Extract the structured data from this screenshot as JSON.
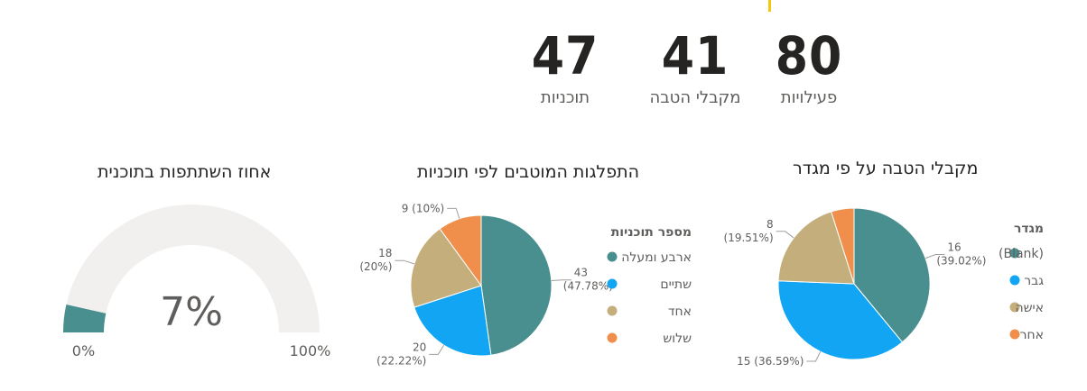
{
  "kpis": [
    {
      "value": "80",
      "label": "פעילויות"
    },
    {
      "value": "41",
      "label": "מקבלי הטבה"
    },
    {
      "value": "47",
      "label": "תוכניות"
    }
  ],
  "chart_data": [
    {
      "type": "gauge",
      "title": "אחוז השתתפות בתוכנית",
      "value": 7,
      "display_value": "7%",
      "min": 0,
      "max": 100,
      "min_label": "0%",
      "max_label": "100%",
      "colors": {
        "fill": "#4a8f8f",
        "track": "#f1f0ef"
      }
    },
    {
      "type": "pie",
      "title": "התפלגות המוטבים לפי תוכניות",
      "legend_title": "מספר תוכניות",
      "legend_position": "right",
      "slices": [
        {
          "name": "ארבע ומעלה",
          "value": 43,
          "count_label": "43",
          "pct_label": "(47.78%)",
          "color": "#4a8f8f"
        },
        {
          "name": "שתיים",
          "value": 20,
          "count_label": "20",
          "pct_label": "(22.22%)",
          "color": "#12a5f4"
        },
        {
          "name": "אחד",
          "value": 18,
          "count_label": "18",
          "pct_label": "(20%)",
          "color": "#c4ae7c"
        },
        {
          "name": "שלוש",
          "value": 9,
          "count_label": "9",
          "pct_label": "(10%)",
          "color": "#f08f4b"
        }
      ]
    },
    {
      "type": "pie",
      "title": "מקבלי הטבה על פי מגדר",
      "legend_title": "מגדר",
      "legend_position": "right",
      "slices": [
        {
          "name": "(Blank)",
          "value": 16,
          "count_label": "16",
          "pct_label": "(39.02%)",
          "color": "#4a8f8f"
        },
        {
          "name": "גבר",
          "value": 15,
          "count_label": "15",
          "pct_label": "(36.59%)",
          "color": "#12a5f4"
        },
        {
          "name": "אישה",
          "value": 8,
          "count_label": "8",
          "pct_label": "(19.51%)",
          "color": "#c4ae7c"
        },
        {
          "name": "אחר",
          "value": 2,
          "count_label": "",
          "pct_label": "",
          "color": "#f08f4b"
        }
      ]
    }
  ]
}
